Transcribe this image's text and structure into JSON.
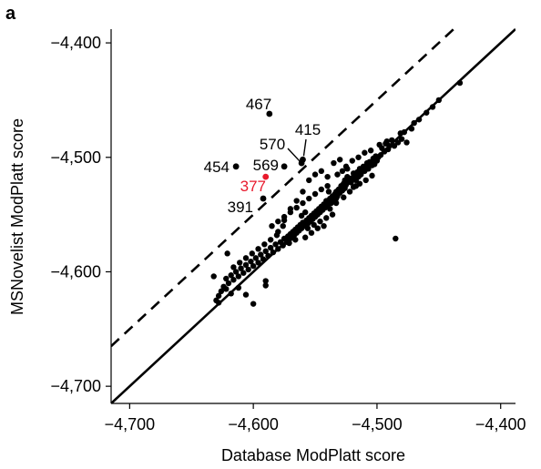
{
  "panel_label": "a",
  "chart_data": {
    "type": "scatter",
    "title": "",
    "xlabel": "Database ModPlatt score",
    "ylabel": "MSNovelist ModPlatt score",
    "xlim": [
      -4715,
      -4388
    ],
    "ylim": [
      -4715,
      -4388
    ],
    "x_ticks": [
      -4700,
      -4600,
      -4500,
      -4400
    ],
    "x_tick_labels": [
      "−4,700",
      "−4,600",
      "−4,500",
      "−4,400"
    ],
    "y_ticks": [
      -4700,
      -4600,
      -4500,
      -4400
    ],
    "y_tick_labels": [
      "−4,700",
      "−4,600",
      "−4,500",
      "−4,400"
    ],
    "grid": false,
    "reference_lines": [
      {
        "style": "solid",
        "description": "y = x",
        "intercept": 0
      },
      {
        "style": "dashed",
        "description": "y = x + 50",
        "intercept": 50
      }
    ],
    "highlight_color": "#e8192c",
    "point_color": "#000000",
    "labeled_points": [
      {
        "label": "467",
        "x": -4587,
        "y": -4462,
        "color": "#000000"
      },
      {
        "label": "415",
        "x": -4560,
        "y": -4502,
        "color": "#000000"
      },
      {
        "label": "570",
        "x": -4561,
        "y": -4505,
        "color": "#000000"
      },
      {
        "label": "454",
        "x": -4614,
        "y": -4508,
        "color": "#000000"
      },
      {
        "label": "569",
        "x": -4575,
        "y": -4508,
        "color": "#000000"
      },
      {
        "label": "377",
        "x": -4590,
        "y": -4517,
        "color": "#e8192c"
      },
      {
        "label": "391",
        "x": -4592,
        "y": -4536,
        "color": "#000000"
      }
    ],
    "points": [
      [
        -4433,
        -4435
      ],
      [
        -4450,
        -4450
      ],
      [
        -4455,
        -4456
      ],
      [
        -4460,
        -4461
      ],
      [
        -4466,
        -4467
      ],
      [
        -4470,
        -4470
      ],
      [
        -4472,
        -4475
      ],
      [
        -4478,
        -4478
      ],
      [
        -4481,
        -4479
      ],
      [
        -4480,
        -4484
      ],
      [
        -4476,
        -4487
      ],
      [
        -4483,
        -4487
      ],
      [
        -4488,
        -4485
      ],
      [
        -4486,
        -4490
      ],
      [
        -4490,
        -4490
      ],
      [
        -4491,
        -4493
      ],
      [
        -4493,
        -4488
      ],
      [
        -4494,
        -4495
      ],
      [
        -4496,
        -4492
      ],
      [
        -4497,
        -4498
      ],
      [
        -4499,
        -4500
      ],
      [
        -4501,
        -4499
      ],
      [
        -4500,
        -4503
      ],
      [
        -4502,
        -4506
      ],
      [
        -4503,
        -4501
      ],
      [
        -4504,
        -4507
      ],
      [
        -4506,
        -4504
      ],
      [
        -4507,
        -4510
      ],
      [
        -4508,
        -4505
      ],
      [
        -4510,
        -4512
      ],
      [
        -4511,
        -4508
      ],
      [
        -4512,
        -4512
      ],
      [
        -4513,
        -4515
      ],
      [
        -4514,
        -4510
      ],
      [
        -4515,
        -4517
      ],
      [
        -4516,
        -4513
      ],
      [
        -4517,
        -4520
      ],
      [
        -4518,
        -4516
      ],
      [
        -4519,
        -4514
      ],
      [
        -4520,
        -4518
      ],
      [
        -4521,
        -4522
      ],
      [
        -4522,
        -4519
      ],
      [
        -4523,
        -4521
      ],
      [
        -4524,
        -4517
      ],
      [
        -4525,
        -4524
      ],
      [
        -4526,
        -4520
      ],
      [
        -4526,
        -4527
      ],
      [
        -4527,
        -4523
      ],
      [
        -4528,
        -4529
      ],
      [
        -4529,
        -4525
      ],
      [
        -4530,
        -4531
      ],
      [
        -4531,
        -4528
      ],
      [
        -4532,
        -4534
      ],
      [
        -4533,
        -4530
      ],
      [
        -4533,
        -4536
      ],
      [
        -4534,
        -4532
      ],
      [
        -4535,
        -4538
      ],
      [
        -4536,
        -4534
      ],
      [
        -4537,
        -4540
      ],
      [
        -4538,
        -4536
      ],
      [
        -4539,
        -4530
      ],
      [
        -4540,
        -4542
      ],
      [
        -4541,
        -4538
      ],
      [
        -4542,
        -4544
      ],
      [
        -4543,
        -4541
      ],
      [
        -4544,
        -4546
      ],
      [
        -4545,
        -4543
      ],
      [
        -4546,
        -4548
      ],
      [
        -4547,
        -4545
      ],
      [
        -4548,
        -4550
      ],
      [
        -4549,
        -4547
      ],
      [
        -4550,
        -4552
      ],
      [
        -4551,
        -4549
      ],
      [
        -4552,
        -4554
      ],
      [
        -4553,
        -4551
      ],
      [
        -4554,
        -4556
      ],
      [
        -4555,
        -4553
      ],
      [
        -4556,
        -4558
      ],
      [
        -4557,
        -4555
      ],
      [
        -4558,
        -4548
      ],
      [
        -4559,
        -4560
      ],
      [
        -4560,
        -4557
      ],
      [
        -4561,
        -4562
      ],
      [
        -4562,
        -4559
      ],
      [
        -4563,
        -4564
      ],
      [
        -4564,
        -4561
      ],
      [
        -4565,
        -4566
      ],
      [
        -4566,
        -4563
      ],
      [
        -4567,
        -4568
      ],
      [
        -4568,
        -4565
      ],
      [
        -4569,
        -4570
      ],
      [
        -4570,
        -4567
      ],
      [
        -4571,
        -4572
      ],
      [
        -4572,
        -4569
      ],
      [
        -4573,
        -4574
      ],
      [
        -4575,
        -4571
      ],
      [
        -4576,
        -4577
      ],
      [
        -4578,
        -4574
      ],
      [
        -4580,
        -4580
      ],
      [
        -4582,
        -4576
      ],
      [
        -4584,
        -4583
      ],
      [
        -4586,
        -4579
      ],
      [
        -4588,
        -4586
      ],
      [
        -4590,
        -4582
      ],
      [
        -4592,
        -4589
      ],
      [
        -4594,
        -4585
      ],
      [
        -4596,
        -4592
      ],
      [
        -4598,
        -4588
      ],
      [
        -4600,
        -4595
      ],
      [
        -4602,
        -4591
      ],
      [
        -4604,
        -4598
      ],
      [
        -4606,
        -4594
      ],
      [
        -4608,
        -4601
      ],
      [
        -4610,
        -4597
      ],
      [
        -4612,
        -4604
      ],
      [
        -4614,
        -4600
      ],
      [
        -4616,
        -4607
      ],
      [
        -4618,
        -4603
      ],
      [
        -4620,
        -4610
      ],
      [
        -4622,
        -4606
      ],
      [
        -4624,
        -4613
      ],
      [
        -4626,
        -4617
      ],
      [
        -4628,
        -4621
      ],
      [
        -4630,
        -4625
      ],
      [
        -4632,
        -4604
      ],
      [
        -4628,
        -4627
      ],
      [
        -4622,
        -4615
      ],
      [
        -4618,
        -4619
      ],
      [
        -4612,
        -4614
      ],
      [
        -4606,
        -4620
      ],
      [
        -4600,
        -4628
      ],
      [
        -4590,
        -4608
      ],
      [
        -4590,
        -4612
      ],
      [
        -4580,
        -4565
      ],
      [
        -4575,
        -4555
      ],
      [
        -4570,
        -4545
      ],
      [
        -4565,
        -4538
      ],
      [
        -4560,
        -4530
      ],
      [
        -4555,
        -4520
      ],
      [
        -4550,
        -4515
      ],
      [
        -4545,
        -4512
      ],
      [
        -4540,
        -4517
      ],
      [
        -4535,
        -4505
      ],
      [
        -4530,
        -4502
      ],
      [
        -4525,
        -4508
      ],
      [
        -4520,
        -4503
      ],
      [
        -4515,
        -4500
      ],
      [
        -4510,
        -4496
      ],
      [
        -4505,
        -4494
      ],
      [
        -4498,
        -4489
      ],
      [
        -4492,
        -4486
      ],
      [
        -4485,
        -4571
      ],
      [
        -4540,
        -4525
      ],
      [
        -4545,
        -4528
      ],
      [
        -4550,
        -4532
      ],
      [
        -4555,
        -4536
      ],
      [
        -4560,
        -4540
      ],
      [
        -4565,
        -4544
      ],
      [
        -4570,
        -4548
      ],
      [
        -4575,
        -4552
      ],
      [
        -4580,
        -4556
      ],
      [
        -4585,
        -4560
      ],
      [
        -4532,
        -4515
      ],
      [
        -4528,
        -4512
      ],
      [
        -4524,
        -4510
      ],
      [
        -4519,
        -4526
      ],
      [
        -4514,
        -4523
      ],
      [
        -4509,
        -4520
      ],
      [
        -4504,
        -4516
      ],
      [
        -4536,
        -4550
      ],
      [
        -4541,
        -4553
      ],
      [
        -4546,
        -4556
      ],
      [
        -4551,
        -4559
      ],
      [
        -4556,
        -4562
      ],
      [
        -4561,
        -4551
      ],
      [
        -4566,
        -4572
      ],
      [
        -4571,
        -4575
      ],
      [
        -4576,
        -4560
      ],
      [
        -4581,
        -4568
      ],
      [
        -4586,
        -4572
      ],
      [
        -4591,
        -4576
      ],
      [
        -4596,
        -4580
      ],
      [
        -4601,
        -4584
      ],
      [
        -4606,
        -4588
      ],
      [
        -4611,
        -4592
      ],
      [
        -4616,
        -4596
      ],
      [
        -4621,
        -4584
      ],
      [
        -4543,
        -4560
      ],
      [
        -4548,
        -4562
      ],
      [
        -4553,
        -4566
      ],
      [
        -4558,
        -4570
      ],
      [
        -4538,
        -4545
      ],
      [
        -4533,
        -4540
      ],
      [
        -4527,
        -4535
      ],
      [
        -4522,
        -4530
      ],
      [
        -4517,
        -4525
      ]
    ]
  }
}
